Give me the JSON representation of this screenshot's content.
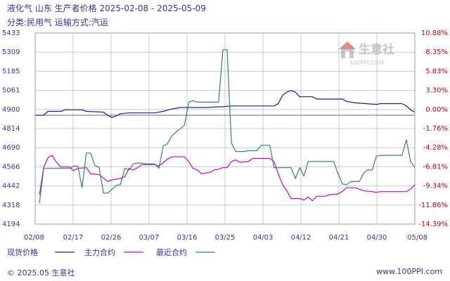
{
  "header": {
    "title": "液化气 山东 生产者价格 2025-02-08 - 2025-05-09",
    "subtitle": "分类:民用气 运输方式:汽运"
  },
  "footer": {
    "copyright": "© 2025.05 生意社",
    "url": "www.100PPI.com"
  },
  "logo": {
    "text": "生意社",
    "small_text": "100PPI.COM"
  },
  "colors": {
    "current": "#1a1aa6",
    "main": "#cc00cc",
    "recent": "#2e8b57",
    "grid": "#c8c8d4",
    "frame": "#9999bb",
    "left_ticks": "#333399",
    "right_ticks": "#cc0000"
  },
  "chart_data": {
    "type": "line",
    "title": "液化气 山东 生产者价格 2025-02-08 - 2025-05-09",
    "subtitle": "分类:民用气 运输方式:汽运",
    "xlabel": "",
    "ylabel": "",
    "x_range": [
      "2025-02-08",
      "2025-05-08"
    ],
    "x_ticks": [
      "02/08",
      "02/17",
      "02/26",
      "03/07",
      "03/16",
      "03/25",
      "04/03",
      "04/12",
      "04/21",
      "04/30",
      "05/08"
    ],
    "ylim_left": [
      4194,
      5433
    ],
    "y_ticks_left": [
      "5433",
      "5309",
      "5185",
      "5061",
      "4900",
      "4814",
      "4690",
      "4566",
      "4442",
      "4318",
      "4194"
    ],
    "ylim_right_pct": [
      -14.39,
      10.88
    ],
    "y_ticks_right": [
      "10.88%",
      "8.35%",
      "5.83%",
      "3.30%",
      "0.00%",
      "-1.76%",
      "-4.28%",
      "-6.81%",
      "-9.34%",
      "-11.86%",
      "-14.39%"
    ],
    "baseline": 4900,
    "grid": true,
    "legend_position": "bottom-left",
    "series": [
      {
        "name": "现货价格",
        "color": "#1a1aa6",
        "points": [
          [
            "2025-02-08",
            4900
          ],
          [
            "2025-02-10",
            4900
          ],
          [
            "2025-02-11",
            4925
          ],
          [
            "2025-02-14",
            4925
          ],
          [
            "2025-02-15",
            4935
          ],
          [
            "2025-02-19",
            4935
          ],
          [
            "2025-02-20",
            4925
          ],
          [
            "2025-02-24",
            4920
          ],
          [
            "2025-02-25",
            4900
          ],
          [
            "2025-02-26",
            4885
          ],
          [
            "2025-02-27",
            4895
          ],
          [
            "2025-02-28",
            4910
          ],
          [
            "2025-03-02",
            4915
          ],
          [
            "2025-03-07",
            4915
          ],
          [
            "2025-03-08",
            4915
          ],
          [
            "2025-03-10",
            4925
          ],
          [
            "2025-03-12",
            4940
          ],
          [
            "2025-03-14",
            4950
          ],
          [
            "2025-03-20",
            4950
          ],
          [
            "2025-03-24",
            4955
          ],
          [
            "2025-03-26",
            4960
          ],
          [
            "2025-04-05",
            4960
          ],
          [
            "2025-04-06",
            4975
          ],
          [
            "2025-04-07",
            5030
          ],
          [
            "2025-04-08",
            5050
          ],
          [
            "2025-04-09",
            5060
          ],
          [
            "2025-04-10",
            5050
          ],
          [
            "2025-04-11",
            5020
          ],
          [
            "2025-04-14",
            5020
          ],
          [
            "2025-04-15",
            5005
          ],
          [
            "2025-04-21",
            5005
          ],
          [
            "2025-04-22",
            4990
          ],
          [
            "2025-04-24",
            4980
          ],
          [
            "2025-04-29",
            4970
          ],
          [
            "2025-04-30",
            4975
          ],
          [
            "2025-05-05",
            4975
          ],
          [
            "2025-05-06",
            4960
          ],
          [
            "2025-05-07",
            4935
          ],
          [
            "2025-05-08",
            4920
          ]
        ]
      },
      {
        "name": "主力合约",
        "color": "#cc00cc",
        "points": [
          [
            "2025-02-09",
            4385
          ],
          [
            "2025-02-10",
            4560
          ],
          [
            "2025-02-11",
            4625
          ],
          [
            "2025-02-12",
            4640
          ],
          [
            "2025-02-13",
            4595
          ],
          [
            "2025-02-14",
            4565
          ],
          [
            "2025-02-16",
            4565
          ],
          [
            "2025-02-17",
            4540
          ],
          [
            "2025-02-18",
            4555
          ],
          [
            "2025-02-20",
            4560
          ],
          [
            "2025-02-21",
            4520
          ],
          [
            "2025-02-23",
            4515
          ],
          [
            "2025-02-25",
            4470
          ],
          [
            "2025-02-26",
            4480
          ],
          [
            "2025-02-28",
            4490
          ],
          [
            "2025-03-01",
            4500
          ],
          [
            "2025-03-02",
            4555
          ],
          [
            "2025-03-03",
            4545
          ],
          [
            "2025-03-04",
            4560
          ],
          [
            "2025-03-05",
            4580
          ],
          [
            "2025-03-08",
            4580
          ],
          [
            "2025-03-09",
            4570
          ],
          [
            "2025-03-11",
            4615
          ],
          [
            "2025-03-12",
            4630
          ],
          [
            "2025-03-15",
            4630
          ],
          [
            "2025-03-16",
            4600
          ],
          [
            "2025-03-17",
            4555
          ],
          [
            "2025-03-18",
            4545
          ],
          [
            "2025-03-19",
            4520
          ],
          [
            "2025-03-20",
            4525
          ],
          [
            "2025-03-21",
            4530
          ],
          [
            "2025-03-22",
            4545
          ],
          [
            "2025-03-23",
            4550
          ],
          [
            "2025-03-24",
            4560
          ],
          [
            "2025-03-25",
            4560
          ],
          [
            "2025-03-26",
            4600
          ],
          [
            "2025-03-27",
            4610
          ],
          [
            "2025-03-28",
            4595
          ],
          [
            "2025-03-30",
            4600
          ],
          [
            "2025-03-31",
            4620
          ],
          [
            "2025-04-04",
            4620
          ],
          [
            "2025-04-05",
            4600
          ],
          [
            "2025-04-06",
            4520
          ],
          [
            "2025-04-07",
            4450
          ],
          [
            "2025-04-08",
            4410
          ],
          [
            "2025-04-09",
            4360
          ],
          [
            "2025-04-11",
            4360
          ],
          [
            "2025-04-12",
            4350
          ],
          [
            "2025-04-13",
            4370
          ],
          [
            "2025-04-14",
            4345
          ],
          [
            "2025-04-15",
            4375
          ],
          [
            "2025-04-17",
            4375
          ],
          [
            "2025-04-18",
            4385
          ],
          [
            "2025-04-20",
            4390
          ],
          [
            "2025-04-21",
            4405
          ],
          [
            "2025-04-22",
            4430
          ],
          [
            "2025-04-24",
            4430
          ],
          [
            "2025-04-26",
            4410
          ],
          [
            "2025-04-28",
            4405
          ],
          [
            "2025-04-29",
            4400
          ],
          [
            "2025-04-30",
            4405
          ],
          [
            "2025-05-06",
            4405
          ],
          [
            "2025-05-07",
            4420
          ],
          [
            "2025-05-08",
            4450
          ]
        ]
      },
      {
        "name": "最近合约",
        "color": "#2e8b57",
        "points": [
          [
            "2025-02-09",
            4330
          ],
          [
            "2025-02-10",
            4555
          ],
          [
            "2025-02-11",
            4555
          ],
          [
            "2025-02-16",
            4555
          ],
          [
            "2025-02-17",
            4570
          ],
          [
            "2025-02-18",
            4570
          ],
          [
            "2025-02-19",
            4430
          ],
          [
            "2025-02-20",
            4655
          ],
          [
            "2025-02-21",
            4655
          ],
          [
            "2025-02-22",
            4575
          ],
          [
            "2025-02-23",
            4560
          ],
          [
            "2025-02-24",
            4395
          ],
          [
            "2025-02-25",
            4395
          ],
          [
            "2025-02-27",
            4445
          ],
          [
            "2025-02-28",
            4450
          ],
          [
            "2025-03-01",
            4555
          ],
          [
            "2025-03-02",
            4545
          ],
          [
            "2025-03-03",
            4585
          ],
          [
            "2025-03-04",
            4590
          ],
          [
            "2025-03-05",
            4590
          ],
          [
            "2025-03-06",
            4585
          ],
          [
            "2025-03-08",
            4585
          ],
          [
            "2025-03-09",
            4555
          ],
          [
            "2025-03-10",
            4700
          ],
          [
            "2025-03-11",
            4715
          ],
          [
            "2025-03-12",
            4765
          ],
          [
            "2025-03-13",
            4790
          ],
          [
            "2025-03-15",
            4835
          ],
          [
            "2025-03-16",
            4985
          ],
          [
            "2025-03-17",
            4995
          ],
          [
            "2025-03-18",
            4985
          ],
          [
            "2025-03-23",
            4985
          ],
          [
            "2025-03-24",
            5325
          ],
          [
            "2025-03-25",
            5325
          ],
          [
            "2025-03-26",
            4720
          ],
          [
            "2025-03-27",
            4665
          ],
          [
            "2025-03-29",
            4665
          ],
          [
            "2025-03-30",
            4670
          ],
          [
            "2025-04-01",
            4670
          ],
          [
            "2025-04-02",
            4705
          ],
          [
            "2025-04-04",
            4705
          ],
          [
            "2025-04-05",
            4560
          ],
          [
            "2025-04-09",
            4560
          ],
          [
            "2025-04-10",
            4490
          ],
          [
            "2025-04-11",
            4560
          ],
          [
            "2025-04-12",
            4505
          ],
          [
            "2025-04-13",
            4600
          ],
          [
            "2025-04-19",
            4600
          ],
          [
            "2025-04-20",
            4520
          ],
          [
            "2025-04-21",
            4455
          ],
          [
            "2025-04-22",
            4450
          ],
          [
            "2025-04-23",
            4470
          ],
          [
            "2025-04-25",
            4470
          ],
          [
            "2025-04-26",
            4525
          ],
          [
            "2025-04-27",
            4545
          ],
          [
            "2025-04-28",
            4545
          ],
          [
            "2025-04-29",
            4635
          ],
          [
            "2025-04-30",
            4640
          ],
          [
            "2025-05-05",
            4640
          ],
          [
            "2025-05-06",
            4740
          ],
          [
            "2025-05-07",
            4600
          ],
          [
            "2025-05-08",
            4560
          ]
        ]
      }
    ]
  }
}
